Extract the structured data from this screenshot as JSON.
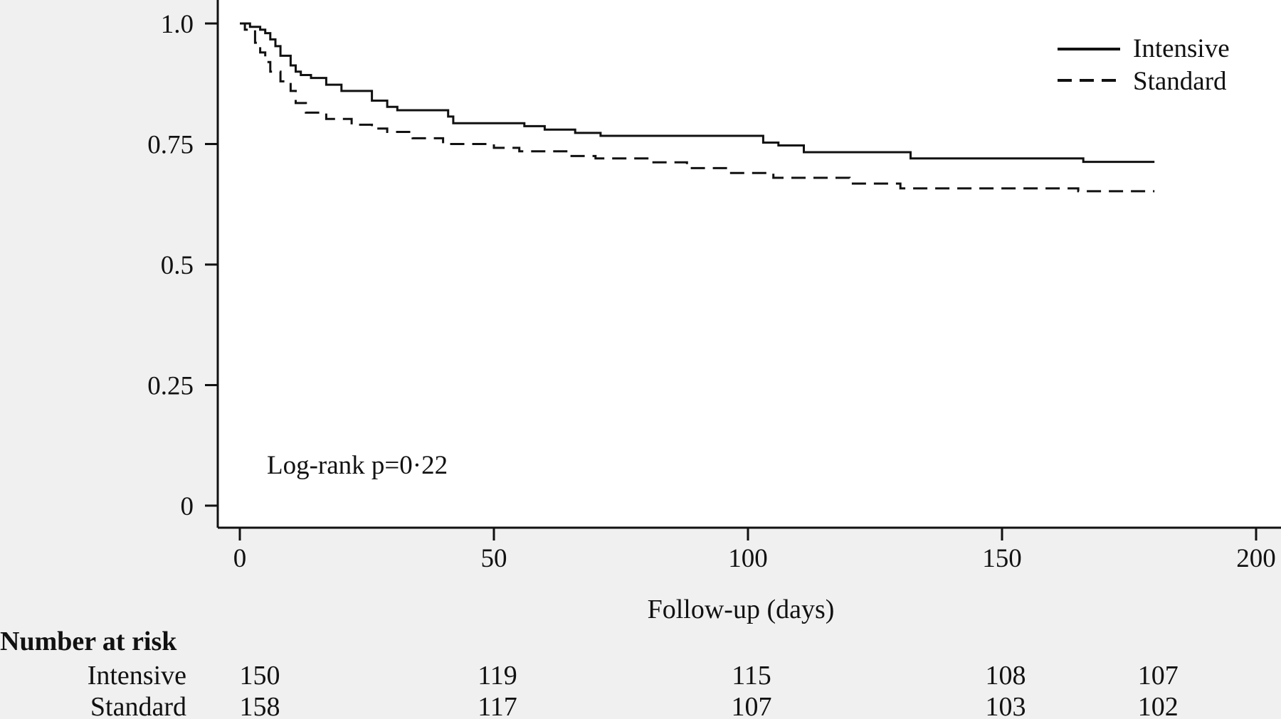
{
  "chart_data": {
    "type": "line",
    "title": "",
    "xlabel": "Follow-up (days)",
    "ylabel": "",
    "xlim": [
      0,
      200
    ],
    "ylim": [
      0,
      1
    ],
    "x_ticks": [
      0,
      50,
      100,
      150,
      200
    ],
    "x_tick_labels": [
      "0",
      "50",
      "100",
      "150",
      "200"
    ],
    "y_ticks": [
      0,
      0.25,
      0.5,
      0.75,
      1
    ],
    "y_tick_labels": [
      "0",
      "0.25",
      "0.5",
      "0.75",
      "1.0"
    ],
    "grid": false,
    "legend": {
      "position": "top-right",
      "entries": [
        "Intensive",
        "Standard"
      ]
    },
    "annotation": "Log-rank p=0·22",
    "series": [
      {
        "name": "Intensive",
        "line_style": "solid",
        "x": [
          0,
          2,
          4,
          5,
          6,
          7,
          8,
          10,
          11,
          12,
          14,
          17,
          20,
          26,
          29,
          31,
          41,
          42,
          56,
          60,
          66,
          71,
          103,
          106,
          111,
          132,
          166,
          180
        ],
        "y": [
          1.0,
          0.993,
          0.987,
          0.98,
          0.967,
          0.953,
          0.933,
          0.913,
          0.9,
          0.893,
          0.887,
          0.873,
          0.86,
          0.84,
          0.827,
          0.82,
          0.807,
          0.793,
          0.787,
          0.78,
          0.773,
          0.767,
          0.753,
          0.747,
          0.733,
          0.72,
          0.713,
          0.713
        ]
      },
      {
        "name": "Standard",
        "line_style": "dashed",
        "x": [
          0,
          1,
          3,
          4,
          5,
          6,
          8,
          10,
          11,
          13,
          17,
          22,
          26,
          29,
          34,
          40,
          50,
          55,
          65,
          70,
          81,
          88,
          96,
          105,
          120,
          130,
          165,
          180
        ],
        "y": [
          1.0,
          0.987,
          0.96,
          0.94,
          0.92,
          0.9,
          0.88,
          0.86,
          0.835,
          0.815,
          0.802,
          0.79,
          0.782,
          0.775,
          0.762,
          0.75,
          0.742,
          0.735,
          0.725,
          0.72,
          0.712,
          0.7,
          0.69,
          0.68,
          0.668,
          0.658,
          0.652,
          0.652
        ]
      }
    ],
    "risk_table": {
      "title": "Number at risk",
      "times": [
        0,
        50,
        100,
        150,
        180
      ],
      "rows": [
        {
          "label": "Intensive",
          "values": [
            "150",
            "119",
            "115",
            "108",
            "107"
          ]
        },
        {
          "label": "Standard",
          "values": [
            "158",
            "117",
            "107",
            "103",
            "102"
          ]
        }
      ]
    }
  }
}
